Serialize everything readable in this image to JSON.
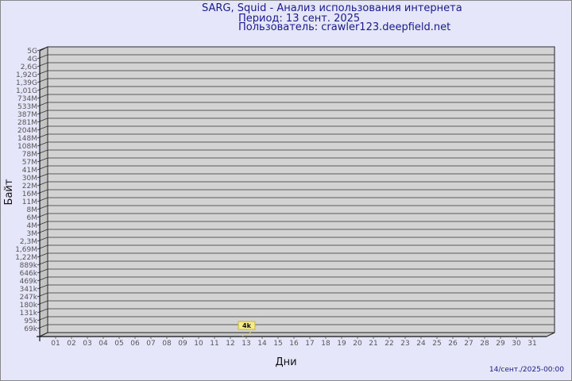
{
  "header": {
    "title": "SARG, Squid - Анализ использования интернета",
    "period": "Период: 13 сент. 2025",
    "user": "Пользователь: crawler123.deepfield.net"
  },
  "footer": {
    "timestamp": "14/сент./2025-00:00"
  },
  "colors": {
    "background": "#e6e6fa",
    "plot": "#d3d3d3",
    "bar": "#f5e98a",
    "title": "#1a1a8c"
  },
  "chart_data": {
    "type": "bar",
    "xlabel": "Дни",
    "ylabel": "Байт",
    "y_scale": "log",
    "y_ticks": [
      "5G",
      "4G",
      "2,6G",
      "1,92G",
      "1,39G",
      "1,01G",
      "734M",
      "533M",
      "387M",
      "281M",
      "204M",
      "148M",
      "108M",
      "78M",
      "57M",
      "41M",
      "30M",
      "22M",
      "16M",
      "11M",
      "8M",
      "6M",
      "4M",
      "3M",
      "2,3M",
      "1,69M",
      "1,22M",
      "889k",
      "646k",
      "469k",
      "341k",
      "247k",
      "180k",
      "131k",
      "95k",
      "69k"
    ],
    "categories": [
      "01",
      "02",
      "03",
      "04",
      "05",
      "06",
      "07",
      "08",
      "09",
      "10",
      "11",
      "12",
      "13",
      "14",
      "15",
      "16",
      "17",
      "18",
      "19",
      "20",
      "21",
      "22",
      "23",
      "24",
      "25",
      "26",
      "27",
      "28",
      "29",
      "30",
      "31"
    ],
    "values": [
      0,
      0,
      0,
      0,
      0,
      0,
      0,
      0,
      0,
      0,
      0,
      0,
      4000,
      0,
      0,
      0,
      0,
      0,
      0,
      0,
      0,
      0,
      0,
      0,
      0,
      0,
      0,
      0,
      0,
      0,
      0
    ],
    "data_labels": [
      {
        "category": "13",
        "label": "4k"
      }
    ],
    "grid": true
  }
}
